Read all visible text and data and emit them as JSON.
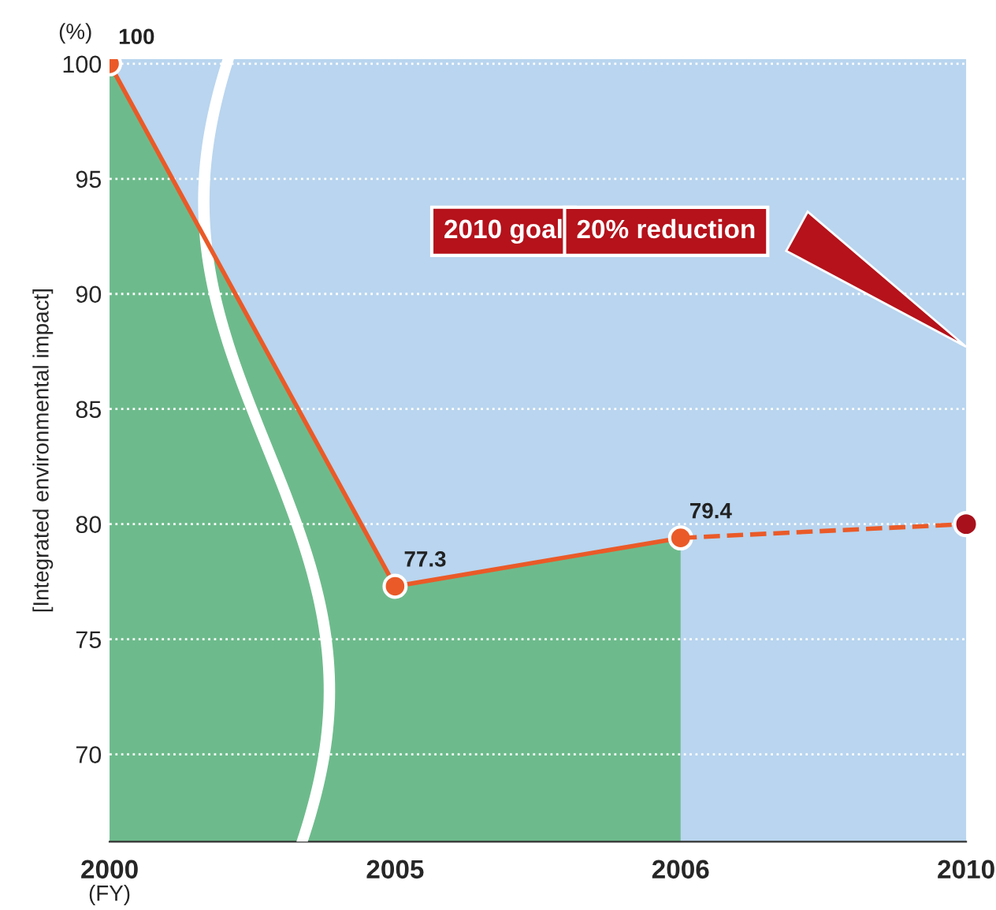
{
  "chart_data": {
    "type": "line",
    "categories": [
      "2000",
      "2005",
      "2006",
      "2010"
    ],
    "xlabel": "(FY)",
    "ylabel": "[Integrated environmental impact]",
    "ylim": [
      66.2,
      100.2
    ],
    "yticks": [
      70,
      75,
      80,
      85,
      90,
      95,
      100
    ],
    "grid": "y",
    "series": [
      {
        "type": "area",
        "color": "#6dbb8c",
        "values": [
          100,
          77.3,
          79.4,
          null
        ]
      },
      {
        "color": "#ea5a28",
        "marker": "circle",
        "values": [
          100,
          77.3,
          79.4,
          null
        ],
        "value_labels": [
          "100",
          "77.3",
          "79.4",
          null
        ]
      },
      {
        "color": "#ea5a28",
        "line_style": "dashed",
        "values": [
          null,
          null,
          79.4,
          80
        ]
      },
      {
        "type": "scatter",
        "color": "#a8111c",
        "marker": "circle",
        "values": [
          null,
          null,
          null,
          80
        ]
      }
    ],
    "annotations": [
      "(%)",
      "2010 goal",
      "20% reduction"
    ]
  }
}
